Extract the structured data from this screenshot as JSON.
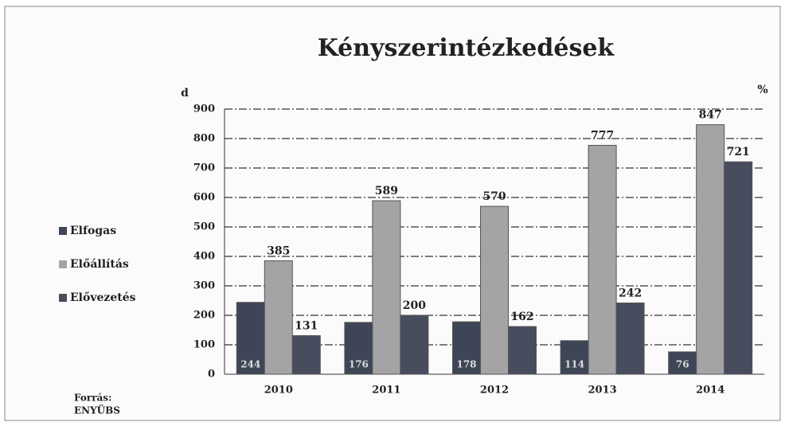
{
  "chart_data": {
    "type": "bar",
    "title": "Kényszerintézkedések",
    "y_label": "d",
    "y2_label": "%",
    "source": [
      "Forrás:",
      "ENYÜBS"
    ],
    "categories": [
      "2010",
      "2011",
      "2012",
      "2013",
      "2014"
    ],
    "series": [
      {
        "name": "Elfogas",
        "color": "#3e4556",
        "values": [
          244,
          176,
          178,
          114,
          76
        ]
      },
      {
        "name": "Előállítás",
        "color": "#a4a4a6",
        "values": [
          385,
          589,
          570,
          777,
          847
        ]
      },
      {
        "name": "Elővezetés",
        "color": "#474d5e",
        "values": [
          131,
          200,
          162,
          242,
          721
        ]
      }
    ],
    "ylim": [
      0,
      900
    ],
    "yticks": [
      0,
      100,
      200,
      300,
      400,
      500,
      600,
      700,
      800,
      900
    ],
    "grid": true
  }
}
